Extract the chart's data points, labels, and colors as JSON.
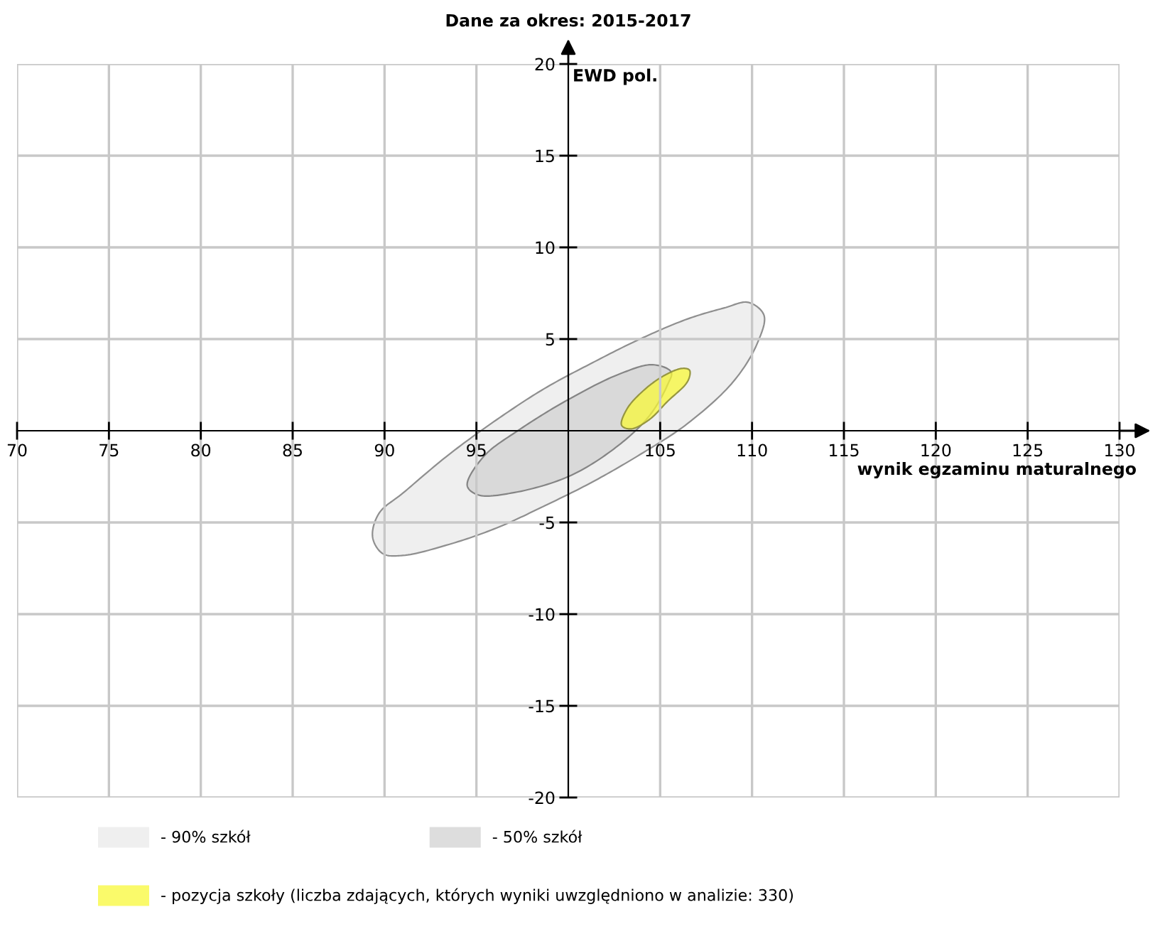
{
  "chart_data": {
    "type": "area",
    "title": "Dane za okres: 2015-2017",
    "xlabel": "wynik egzaminu maturalnego",
    "ylabel": "EWD pol.",
    "xlim": [
      70,
      130
    ],
    "ylim": [
      -20,
      20
    ],
    "xticks": [
      70,
      75,
      80,
      85,
      90,
      95,
      105,
      110,
      115,
      120,
      125,
      130
    ],
    "yticks": [
      -20,
      -15,
      -10,
      -5,
      5,
      10,
      15,
      20
    ],
    "grid": true,
    "legend": "bottom",
    "series": [
      {
        "name": "- 90% szkół",
        "color": "#efefef",
        "x": [
          110.65,
          109.8,
          108.5,
          106.5,
          103.9,
          101.3,
          98.7,
          96.1,
          93.5,
          91.0,
          89.7,
          89.35,
          89.9,
          91.0,
          93.5,
          96.1,
          98.7,
          101.3,
          103.9,
          106.5,
          109.0,
          110.3
        ],
        "values": [
          6.3,
          7.0,
          6.7,
          6.1,
          5.0,
          3.7,
          2.3,
          0.6,
          -1.3,
          -3.4,
          -4.5,
          -5.8,
          -6.7,
          -6.8,
          -6.2,
          -5.3,
          -4.1,
          -2.8,
          -1.3,
          0.4,
          2.7,
          4.8
        ]
      },
      {
        "name": "- 50% szkół",
        "color": "#dddddd",
        "x": [
          105.6,
          104.6,
          102.8,
          100.0,
          97.4,
          95.4,
          94.5,
          95.1,
          96.9,
          100.0,
          102.6,
          104.4,
          105.4
        ],
        "values": [
          3.2,
          3.6,
          3.1,
          1.7,
          0.1,
          -1.4,
          -3.0,
          -3.5,
          -3.4,
          -2.5,
          -0.9,
          0.8,
          2.5
        ]
      },
      {
        "name": "- pozycja szkoły (liczba zdających, których wyniki uwzględniono w analizie: 330)",
        "color": "#fafa6a",
        "x": [
          106.6,
          106.2,
          105.2,
          104.1,
          103.2,
          102.9,
          103.4,
          104.4,
          105.4,
          106.5
        ],
        "values": [
          3.3,
          3.4,
          3.0,
          2.2,
          1.2,
          0.3,
          0.1,
          0.6,
          1.6,
          2.7
        ]
      }
    ]
  }
}
